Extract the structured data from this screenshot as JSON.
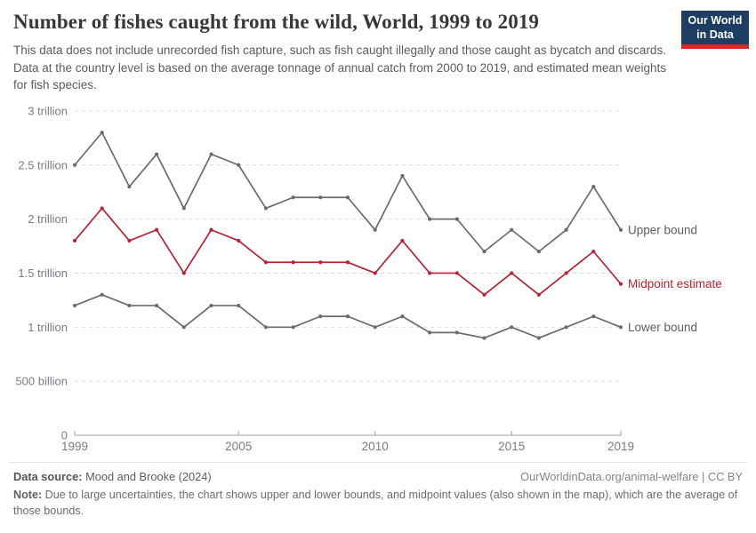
{
  "header": {
    "title": "Number of fishes caught from the wild, World, 1999 to 2019",
    "subtitle": "This data does not include unrecorded fish capture, such as fish caught illegally and those caught as bycatch and discards. Data at the country level is based on the average tonnage of annual catch from 2000 to 2019, and estimated mean weights for fish species.",
    "logo": {
      "line1": "Our World",
      "line2": "in Data",
      "bg_color": "#1d3d63",
      "accent_color": "#d42a20"
    }
  },
  "chart_data": {
    "type": "line",
    "title": "Number of fishes caught from the wild, World, 1999 to 2019",
    "xlabel": "",
    "ylabel": "",
    "unit": "fishes per year",
    "x": [
      1999,
      2000,
      2001,
      2002,
      2003,
      2004,
      2005,
      2006,
      2007,
      2008,
      2009,
      2010,
      2011,
      2012,
      2013,
      2014,
      2015,
      2016,
      2017,
      2018,
      2019
    ],
    "series": [
      {
        "name": "Upper bound",
        "color": "#6e6a6a",
        "values_trillions": [
          2.5,
          2.8,
          2.3,
          2.6,
          2.1,
          2.6,
          2.5,
          2.1,
          2.2,
          2.2,
          2.2,
          1.9,
          2.4,
          2.0,
          2.0,
          1.7,
          1.9,
          1.7,
          1.9,
          2.3,
          1.9
        ]
      },
      {
        "name": "Midpoint estimate",
        "color": "#b52334",
        "values_trillions": [
          1.8,
          2.1,
          1.8,
          1.9,
          1.5,
          1.9,
          1.8,
          1.6,
          1.6,
          1.6,
          1.6,
          1.5,
          1.8,
          1.5,
          1.5,
          1.3,
          1.5,
          1.3,
          1.5,
          1.7,
          1.4
        ]
      },
      {
        "name": "Lower bound",
        "color": "#6e6a6a",
        "values_trillions": [
          1.2,
          1.3,
          1.2,
          1.2,
          1.0,
          1.2,
          1.2,
          1.0,
          1.0,
          1.1,
          1.1,
          1.0,
          1.1,
          0.95,
          0.95,
          0.9,
          1.0,
          0.9,
          1.0,
          1.1,
          1.0
        ]
      }
    ],
    "ylim_trillions": [
      0,
      3
    ],
    "yticks": [
      {
        "value": 0,
        "label": "0"
      },
      {
        "value": 0.5,
        "label": "500 billion"
      },
      {
        "value": 1,
        "label": "1 trillion"
      },
      {
        "value": 1.5,
        "label": "1.5 trillion"
      },
      {
        "value": 2,
        "label": "2 trillion"
      },
      {
        "value": 2.5,
        "label": "2.5 trillion"
      },
      {
        "value": 3,
        "label": "3 trillion"
      }
    ],
    "xticks": [
      1999,
      2005,
      2010,
      2015,
      2019
    ],
    "grid": "horizontal-dashed",
    "legend_position": "line-end-labels",
    "colors": {
      "grid": "#dcdcdc",
      "axis": "#a3a3a3",
      "tick_text": "#7c7a82",
      "label_gray": "#5d5d5d",
      "label_red": "#b52334"
    }
  },
  "footer": {
    "datasource_label": "Data source:",
    "datasource_value": " Mood and Brooke (2024)",
    "attribution": "OurWorldinData.org/animal-welfare | CC BY",
    "note_label": "Note:",
    "note_value": " Due to large uncertainties, the chart shows upper and lower bounds, and midpoint values (also shown in the map), which are the average of those bounds."
  }
}
